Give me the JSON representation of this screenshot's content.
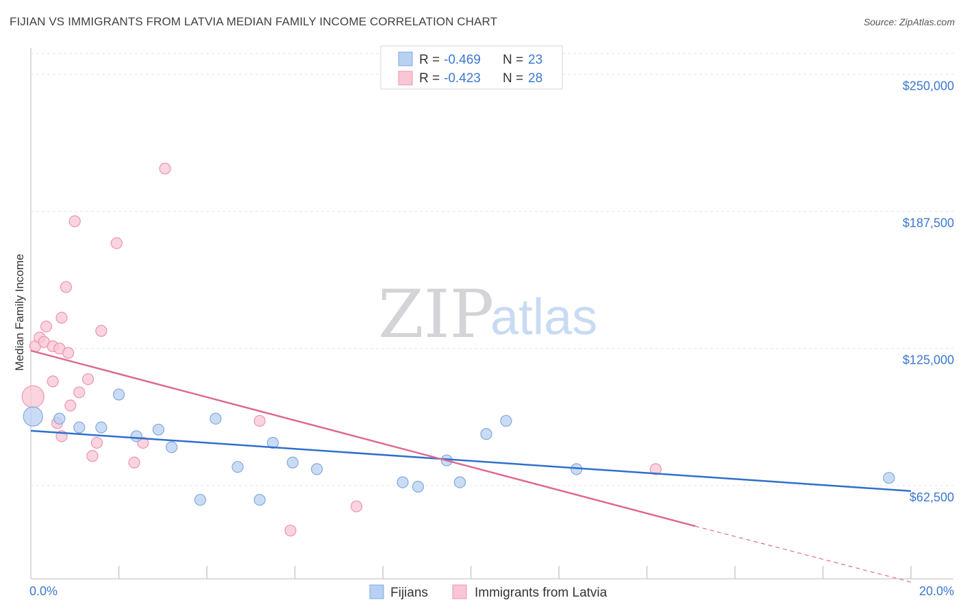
{
  "title": "FIJIAN VS IMMIGRANTS FROM LATVIA MEDIAN FAMILY INCOME CORRELATION CHART",
  "source": "Source: ZipAtlas.com",
  "watermark": {
    "zip": "ZIP",
    "atlas": "atlas"
  },
  "colors": {
    "blue_fill": "#b8d0f2",
    "blue_stroke": "#7fa8e0",
    "blue_line": "#2f6fcc",
    "pink_fill": "#f8c6d4",
    "pink_stroke": "#ee93ae",
    "pink_line": "#e06892",
    "tick_text": "#3a78d0"
  },
  "legend": {
    "rows": [
      {
        "r_label": "R = ",
        "r_value": "-0.469",
        "n_label": "N = ",
        "n_value": "23"
      },
      {
        "r_label": "R = ",
        "r_value": "-0.423",
        "n_label": "N = ",
        "n_value": "28"
      }
    ]
  },
  "chart_data": {
    "type": "scatter",
    "title": "FIJIAN VS IMMIGRANTS FROM LATVIA MEDIAN FAMILY INCOME CORRELATION CHART",
    "xlabel": "",
    "ylabel": "Median Family Income",
    "xlim": [
      0,
      20
    ],
    "ylim": [
      20000,
      262000
    ],
    "x_tick_labels": [
      "0.0%",
      "20.0%"
    ],
    "y_ticks": [
      {
        "value": 62500,
        "label": "$62,500"
      },
      {
        "value": 125000,
        "label": "$125,000"
      },
      {
        "value": 187500,
        "label": "$187,500"
      },
      {
        "value": 250000,
        "label": "$250,000"
      }
    ],
    "grid": true,
    "legend_position": "top-center",
    "series": [
      {
        "name": "Fijians",
        "color": "#b8d0f2",
        "points": [
          [
            0.05,
            94000,
            14
          ],
          [
            0.65,
            93000,
            8
          ],
          [
            1.1,
            89000,
            8
          ],
          [
            1.6,
            89000,
            8
          ],
          [
            2.0,
            104000,
            8
          ],
          [
            2.4,
            85000,
            8
          ],
          [
            2.9,
            88000,
            8
          ],
          [
            3.2,
            80000,
            8
          ],
          [
            3.85,
            56000,
            8
          ],
          [
            4.2,
            93000,
            8
          ],
          [
            4.7,
            71000,
            8
          ],
          [
            5.2,
            56000,
            8
          ],
          [
            5.5,
            82000,
            8
          ],
          [
            5.95,
            73000,
            8
          ],
          [
            6.5,
            70000,
            8
          ],
          [
            8.45,
            64000,
            8
          ],
          [
            8.8,
            62000,
            8
          ],
          [
            9.45,
            74000,
            8
          ],
          [
            9.75,
            64000,
            8
          ],
          [
            10.35,
            86000,
            8
          ],
          [
            10.8,
            92000,
            8
          ],
          [
            12.4,
            70000,
            8
          ],
          [
            19.5,
            66000,
            8
          ]
        ],
        "trend": {
          "x0": 0,
          "y0": 87500,
          "x1": 20,
          "y1": 60000
        }
      },
      {
        "name": "Immigrants from Latvia",
        "color": "#f8c6d4",
        "points": [
          [
            0.05,
            103000,
            16
          ],
          [
            0.1,
            126000,
            8
          ],
          [
            0.2,
            130000,
            8
          ],
          [
            0.3,
            128000,
            8
          ],
          [
            0.35,
            135000,
            8
          ],
          [
            0.5,
            126000,
            8
          ],
          [
            0.5,
            110000,
            8
          ],
          [
            0.6,
            91000,
            8
          ],
          [
            0.65,
            125000,
            8
          ],
          [
            0.7,
            85000,
            8
          ],
          [
            0.7,
            139000,
            8
          ],
          [
            0.8,
            153000,
            8
          ],
          [
            0.85,
            123000,
            8
          ],
          [
            0.9,
            99000,
            8
          ],
          [
            1.0,
            183000,
            8
          ],
          [
            1.1,
            105000,
            8
          ],
          [
            1.3,
            111000,
            8
          ],
          [
            1.4,
            76000,
            8
          ],
          [
            1.5,
            82000,
            8
          ],
          [
            1.6,
            133000,
            8
          ],
          [
            1.95,
            173000,
            8
          ],
          [
            2.35,
            73000,
            8
          ],
          [
            2.55,
            82000,
            8
          ],
          [
            3.05,
            207000,
            8
          ],
          [
            5.2,
            92000,
            8
          ],
          [
            5.9,
            42000,
            8
          ],
          [
            7.4,
            53000,
            8
          ],
          [
            14.2,
            70000,
            8
          ]
        ],
        "trend": {
          "x0": 0,
          "y0": 124000,
          "x1": 15.1,
          "y1": 44000
        },
        "trend_dashed": {
          "x0": 15.1,
          "y0": 44000,
          "x1": 20,
          "y1": 18500
        }
      }
    ]
  }
}
